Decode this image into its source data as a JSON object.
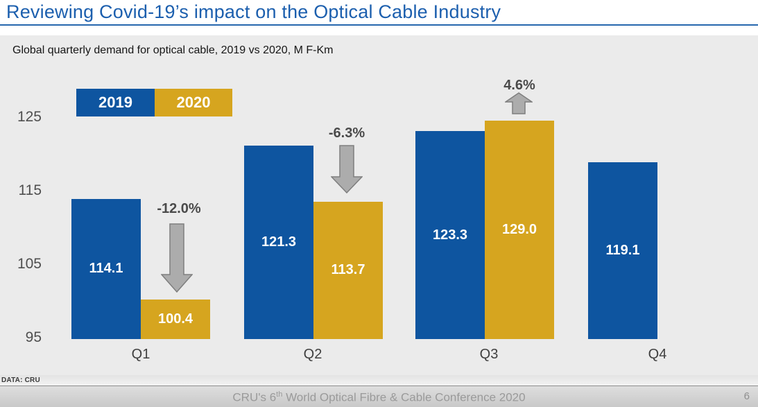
{
  "slide": {
    "title": "Reviewing Covid-19’s impact on the Optical Cable Industry",
    "subtitle": "Global quarterly demand for optical cable, 2019 vs 2020, M F-Km",
    "data_source": "DATA: CRU",
    "footer": {
      "conference_prefix": "CRU's 6",
      "conference_sup": "th",
      "conference_suffix": " World Optical Fibre & Cable Conference 2020",
      "page_number": "6"
    }
  },
  "colors": {
    "series_2019_blue": "#0e55a0",
    "series_2020_gold": "#d6a51f",
    "title_blue": "#1c5fae",
    "arrow_gray_fill": "#acacac",
    "arrow_gray_stroke": "#7e7e7e"
  },
  "chart_data": {
    "type": "bar",
    "title": "Global quarterly demand for optical cable, 2019 vs 2020, M F-Km",
    "categories": [
      "Q1",
      "Q2",
      "Q3",
      "Q4"
    ],
    "series": [
      {
        "name": "2019",
        "values": [
          114.1,
          121.3,
          123.3,
          119.1
        ]
      },
      {
        "name": "2020",
        "values": [
          100.4,
          113.7,
          129.0,
          null
        ]
      }
    ],
    "change_labels": [
      {
        "quarter": "Q1",
        "label": "-12.0%",
        "direction": "down"
      },
      {
        "quarter": "Q2",
        "label": "-6.3%",
        "direction": "down"
      },
      {
        "quarter": "Q3",
        "label": "4.6%",
        "direction": "up"
      }
    ],
    "yticks": [
      125,
      115,
      105,
      95
    ],
    "ylim": [
      95,
      130
    ],
    "grid": false,
    "legend_position": "top-left",
    "value_label_format": "one-decimal"
  }
}
